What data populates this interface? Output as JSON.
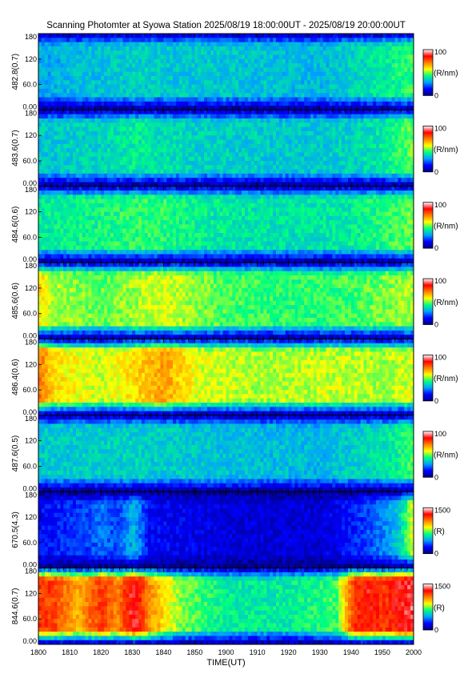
{
  "title": "Scanning Photomter at Syowa Station 2025/08/19 18:00:00UT - 2025/08/19 20:00:00UT",
  "colors": {
    "colormap": [
      "#000080",
      "#0000ff",
      "#00a0ff",
      "#00ff80",
      "#ffff00",
      "#ff8000",
      "#ff0000",
      "#ffffff"
    ]
  },
  "chart_data": {
    "type": "heatmap",
    "xlabel": "TIME(UT)",
    "x_ticks": [
      "1800",
      "1810",
      "1820",
      "1830",
      "1840",
      "1850",
      "1900",
      "1910",
      "1920",
      "1930",
      "1940",
      "1950",
      "2000"
    ],
    "xlim": [
      "18:00",
      "20:00"
    ],
    "y_ticks": [
      "0.00",
      "60.0",
      "120",
      "180"
    ],
    "ylim": [
      0,
      180
    ],
    "panels": [
      {
        "ylabel": "482.8(0.7)",
        "colorbar": {
          "min": "0",
          "max": "100",
          "unit": "(R/nm)"
        },
        "level": 0.3,
        "profile": [
          [
            0,
            0.3
          ],
          [
            10,
            0.32
          ],
          [
            30,
            0.35
          ],
          [
            60,
            0.34
          ],
          [
            90,
            0.32
          ],
          [
            100,
            0.36
          ],
          [
            110,
            0.4
          ],
          [
            120,
            0.45
          ]
        ]
      },
      {
        "ylabel": "483.6(0.7)",
        "colorbar": {
          "min": "0",
          "max": "100",
          "unit": "(R/nm)"
        },
        "level": 0.33,
        "profile": [
          [
            0,
            0.34
          ],
          [
            20,
            0.36
          ],
          [
            30,
            0.4
          ],
          [
            50,
            0.36
          ],
          [
            80,
            0.34
          ],
          [
            100,
            0.36
          ],
          [
            110,
            0.4
          ],
          [
            120,
            0.5
          ]
        ]
      },
      {
        "ylabel": "484.6(0.6)",
        "colorbar": {
          "min": "0",
          "max": "100",
          "unit": "(R/nm)"
        },
        "level": 0.38,
        "profile": [
          [
            0,
            0.4
          ],
          [
            15,
            0.42
          ],
          [
            35,
            0.45
          ],
          [
            55,
            0.4
          ],
          [
            80,
            0.38
          ],
          [
            100,
            0.4
          ],
          [
            110,
            0.44
          ],
          [
            120,
            0.48
          ]
        ]
      },
      {
        "ylabel": "485.6(0.6)",
        "colorbar": {
          "min": "0",
          "max": "100",
          "unit": "(R/nm)"
        },
        "level": 0.45,
        "profile": [
          [
            0,
            0.6
          ],
          [
            5,
            0.52
          ],
          [
            20,
            0.48
          ],
          [
            40,
            0.55
          ],
          [
            60,
            0.46
          ],
          [
            85,
            0.44
          ],
          [
            100,
            0.46
          ],
          [
            112,
            0.5
          ],
          [
            120,
            0.52
          ]
        ]
      },
      {
        "ylabel": "486.4(0.6)",
        "colorbar": {
          "min": "0",
          "max": "100",
          "unit": "(R/nm)"
        },
        "level": 0.5,
        "profile": [
          [
            0,
            0.72
          ],
          [
            5,
            0.6
          ],
          [
            20,
            0.54
          ],
          [
            40,
            0.68
          ],
          [
            50,
            0.56
          ],
          [
            70,
            0.52
          ],
          [
            90,
            0.54
          ],
          [
            110,
            0.52
          ],
          [
            120,
            0.55
          ]
        ]
      },
      {
        "ylabel": "487.6(0.5)",
        "colorbar": {
          "min": "0",
          "max": "100",
          "unit": "(R/nm)"
        },
        "level": 0.32,
        "profile": [
          [
            0,
            0.34
          ],
          [
            30,
            0.36
          ],
          [
            60,
            0.33
          ],
          [
            90,
            0.32
          ],
          [
            110,
            0.38
          ],
          [
            120,
            0.46
          ]
        ]
      },
      {
        "ylabel": "670.5(4.3)",
        "colorbar": {
          "min": "0",
          "max": "1500",
          "unit": "(R)"
        },
        "level": 0.12,
        "profile": [
          [
            0,
            0.14
          ],
          [
            15,
            0.2
          ],
          [
            20,
            0.24
          ],
          [
            25,
            0.2
          ],
          [
            30,
            0.32
          ],
          [
            35,
            0.14
          ],
          [
            60,
            0.1
          ],
          [
            90,
            0.1
          ],
          [
            100,
            0.16
          ],
          [
            110,
            0.26
          ],
          [
            115,
            0.35
          ],
          [
            120,
            0.6
          ]
        ]
      },
      {
        "ylabel": "844.6(0.7)",
        "colorbar": {
          "min": "0",
          "max": "1500",
          "unit": "(R)"
        },
        "level": 0.62,
        "profile": [
          [
            0,
            0.8
          ],
          [
            5,
            0.78
          ],
          [
            12,
            0.66
          ],
          [
            20,
            0.8
          ],
          [
            25,
            0.7
          ],
          [
            30,
            0.9
          ],
          [
            35,
            0.7
          ],
          [
            45,
            0.5
          ],
          [
            60,
            0.4
          ],
          [
            80,
            0.4
          ],
          [
            95,
            0.46
          ],
          [
            100,
            0.78
          ],
          [
            105,
            0.86
          ],
          [
            110,
            0.8
          ],
          [
            115,
            0.86
          ],
          [
            120,
            0.92
          ]
        ]
      }
    ]
  }
}
